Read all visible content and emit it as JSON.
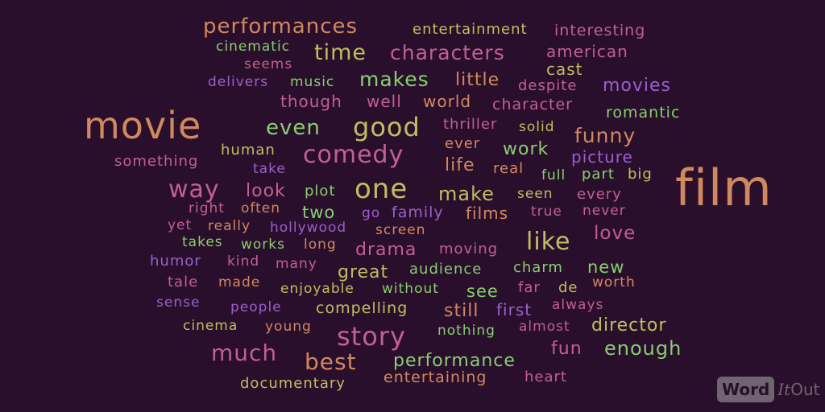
{
  "colors": {
    "background": "#2a0f2c",
    "orange": "#d0895f",
    "pink": "#c2608f",
    "purple": "#9c5fcb",
    "green": "#87cf6f",
    "olive": "#bfbf5f"
  },
  "words": [
    {
      "text": "performances",
      "color": "#d0895f"
    },
    {
      "text": "entertainment",
      "color": "#bfbf5f"
    },
    {
      "text": "interesting",
      "color": "#c2608f"
    },
    {
      "text": "cinematic",
      "color": "#87cf6f"
    },
    {
      "text": "time",
      "color": "#bfbf5f"
    },
    {
      "text": "characters",
      "color": "#c2608f"
    },
    {
      "text": "american",
      "color": "#c2608f"
    },
    {
      "text": "seems",
      "color": "#c2608f"
    },
    {
      "text": "cast",
      "color": "#bfbf5f"
    },
    {
      "text": "delivers",
      "color": "#9c5fcb"
    },
    {
      "text": "music",
      "color": "#87cf6f"
    },
    {
      "text": "makes",
      "color": "#87cf6f"
    },
    {
      "text": "little",
      "color": "#d0895f"
    },
    {
      "text": "despite",
      "color": "#c2608f"
    },
    {
      "text": "movies",
      "color": "#9c5fcb"
    },
    {
      "text": "though",
      "color": "#c2608f"
    },
    {
      "text": "well",
      "color": "#c2608f"
    },
    {
      "text": "world",
      "color": "#d0895f"
    },
    {
      "text": "character",
      "color": "#c2608f"
    },
    {
      "text": "romantic",
      "color": "#87cf6f"
    },
    {
      "text": "movie",
      "color": "#d0895f"
    },
    {
      "text": "even",
      "color": "#87cf6f"
    },
    {
      "text": "good",
      "color": "#bfbf5f"
    },
    {
      "text": "thriller",
      "color": "#c2608f"
    },
    {
      "text": "solid",
      "color": "#bfbf5f"
    },
    {
      "text": "funny",
      "color": "#d0895f"
    },
    {
      "text": "ever",
      "color": "#d0895f"
    },
    {
      "text": "work",
      "color": "#87cf6f"
    },
    {
      "text": "human",
      "color": "#bfbf5f"
    },
    {
      "text": "comedy",
      "color": "#c2608f"
    },
    {
      "text": "picture",
      "color": "#9c5fcb"
    },
    {
      "text": "something",
      "color": "#c2608f"
    },
    {
      "text": "take",
      "color": "#9c5fcb"
    },
    {
      "text": "life",
      "color": "#d0895f"
    },
    {
      "text": "real",
      "color": "#d0895f"
    },
    {
      "text": "full",
      "color": "#87cf6f"
    },
    {
      "text": "part",
      "color": "#87cf6f"
    },
    {
      "text": "big",
      "color": "#bfbf5f"
    },
    {
      "text": "film",
      "color": "#d0895f"
    },
    {
      "text": "way",
      "color": "#c2608f"
    },
    {
      "text": "look",
      "color": "#c2608f"
    },
    {
      "text": "plot",
      "color": "#87cf6f"
    },
    {
      "text": "one",
      "color": "#bfbf5f"
    },
    {
      "text": "make",
      "color": "#bfbf5f"
    },
    {
      "text": "seen",
      "color": "#bfbf5f"
    },
    {
      "text": "every",
      "color": "#c2608f"
    },
    {
      "text": "right",
      "color": "#c2608f"
    },
    {
      "text": "often",
      "color": "#d0895f"
    },
    {
      "text": "two",
      "color": "#87cf6f"
    },
    {
      "text": "go",
      "color": "#9c5fcb"
    },
    {
      "text": "family",
      "color": "#9c5fcb"
    },
    {
      "text": "films",
      "color": "#d0895f"
    },
    {
      "text": "true",
      "color": "#c2608f"
    },
    {
      "text": "never",
      "color": "#c2608f"
    },
    {
      "text": "yet",
      "color": "#c2608f"
    },
    {
      "text": "really",
      "color": "#d0895f"
    },
    {
      "text": "hollywood",
      "color": "#9c5fcb"
    },
    {
      "text": "screen",
      "color": "#d0895f"
    },
    {
      "text": "like",
      "color": "#bfbf5f"
    },
    {
      "text": "love",
      "color": "#c2608f"
    },
    {
      "text": "takes",
      "color": "#87cf6f"
    },
    {
      "text": "works",
      "color": "#87cf6f"
    },
    {
      "text": "long",
      "color": "#d0895f"
    },
    {
      "text": "drama",
      "color": "#c2608f"
    },
    {
      "text": "moving",
      "color": "#c2608f"
    },
    {
      "text": "humor",
      "color": "#9c5fcb"
    },
    {
      "text": "kind",
      "color": "#c2608f"
    },
    {
      "text": "many",
      "color": "#c2608f"
    },
    {
      "text": "great",
      "color": "#bfbf5f"
    },
    {
      "text": "audience",
      "color": "#87cf6f"
    },
    {
      "text": "charm",
      "color": "#87cf6f"
    },
    {
      "text": "new",
      "color": "#87cf6f"
    },
    {
      "text": "tale",
      "color": "#c2608f"
    },
    {
      "text": "made",
      "color": "#d0895f"
    },
    {
      "text": "enjoyable",
      "color": "#bfbf5f"
    },
    {
      "text": "without",
      "color": "#87cf6f"
    },
    {
      "text": "see",
      "color": "#87cf6f"
    },
    {
      "text": "far",
      "color": "#c2608f"
    },
    {
      "text": "de",
      "color": "#bfbf5f"
    },
    {
      "text": "worth",
      "color": "#d0895f"
    },
    {
      "text": "sense",
      "color": "#9c5fcb"
    },
    {
      "text": "people",
      "color": "#9c5fcb"
    },
    {
      "text": "compelling",
      "color": "#bfbf5f"
    },
    {
      "text": "still",
      "color": "#d0895f"
    },
    {
      "text": "first",
      "color": "#9c5fcb"
    },
    {
      "text": "always",
      "color": "#c2608f"
    },
    {
      "text": "cinema",
      "color": "#bfbf5f"
    },
    {
      "text": "young",
      "color": "#d0895f"
    },
    {
      "text": "story",
      "color": "#c2608f"
    },
    {
      "text": "nothing",
      "color": "#87cf6f"
    },
    {
      "text": "almost",
      "color": "#c2608f"
    },
    {
      "text": "director",
      "color": "#bfbf5f"
    },
    {
      "text": "much",
      "color": "#c2608f"
    },
    {
      "text": "best",
      "color": "#d0895f"
    },
    {
      "text": "performance",
      "color": "#87cf6f"
    },
    {
      "text": "fun",
      "color": "#c2608f"
    },
    {
      "text": "enough",
      "color": "#87cf6f"
    },
    {
      "text": "documentary",
      "color": "#bfbf5f"
    },
    {
      "text": "entertaining",
      "color": "#d0895f"
    },
    {
      "text": "heart",
      "color": "#c2608f"
    }
  ],
  "logo": {
    "word": "Word",
    "it": "It",
    "out": "Out"
  }
}
